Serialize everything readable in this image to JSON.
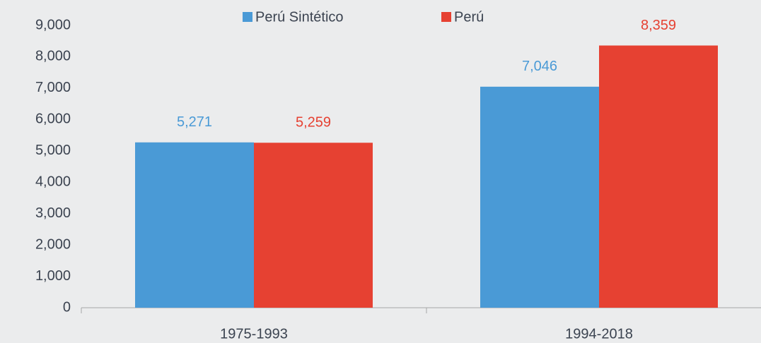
{
  "chart_data": {
    "type": "bar",
    "categories": [
      "1975-1993",
      "1994-2018"
    ],
    "series": [
      {
        "name": "Perú Sintético",
        "color": "#4a9ad6",
        "values": [
          5271,
          7046
        ],
        "value_labels": [
          "5,271",
          "7,046"
        ]
      },
      {
        "name": "Perú",
        "color": "#e64132",
        "values": [
          5259,
          8359
        ],
        "value_labels": [
          "5,259",
          "8,359"
        ]
      }
    ],
    "ylim": [
      0,
      9000
    ],
    "yticks": [
      0,
      {
        "value": 1000,
        "label": "1,000"
      },
      {
        "value": 2000,
        "label": "2,000"
      },
      {
        "value": 3000,
        "label": "3,000"
      },
      {
        "value": 4000,
        "label": "4,000"
      },
      {
        "value": 5000,
        "label": "5,000"
      },
      {
        "value": 6000,
        "label": "6,000"
      },
      {
        "value": 7000,
        "label": "7,000"
      },
      {
        "value": 8000,
        "label": "8,000"
      },
      {
        "value": 9000,
        "label": "9,000"
      }
    ],
    "grid": false,
    "legend": "top"
  }
}
